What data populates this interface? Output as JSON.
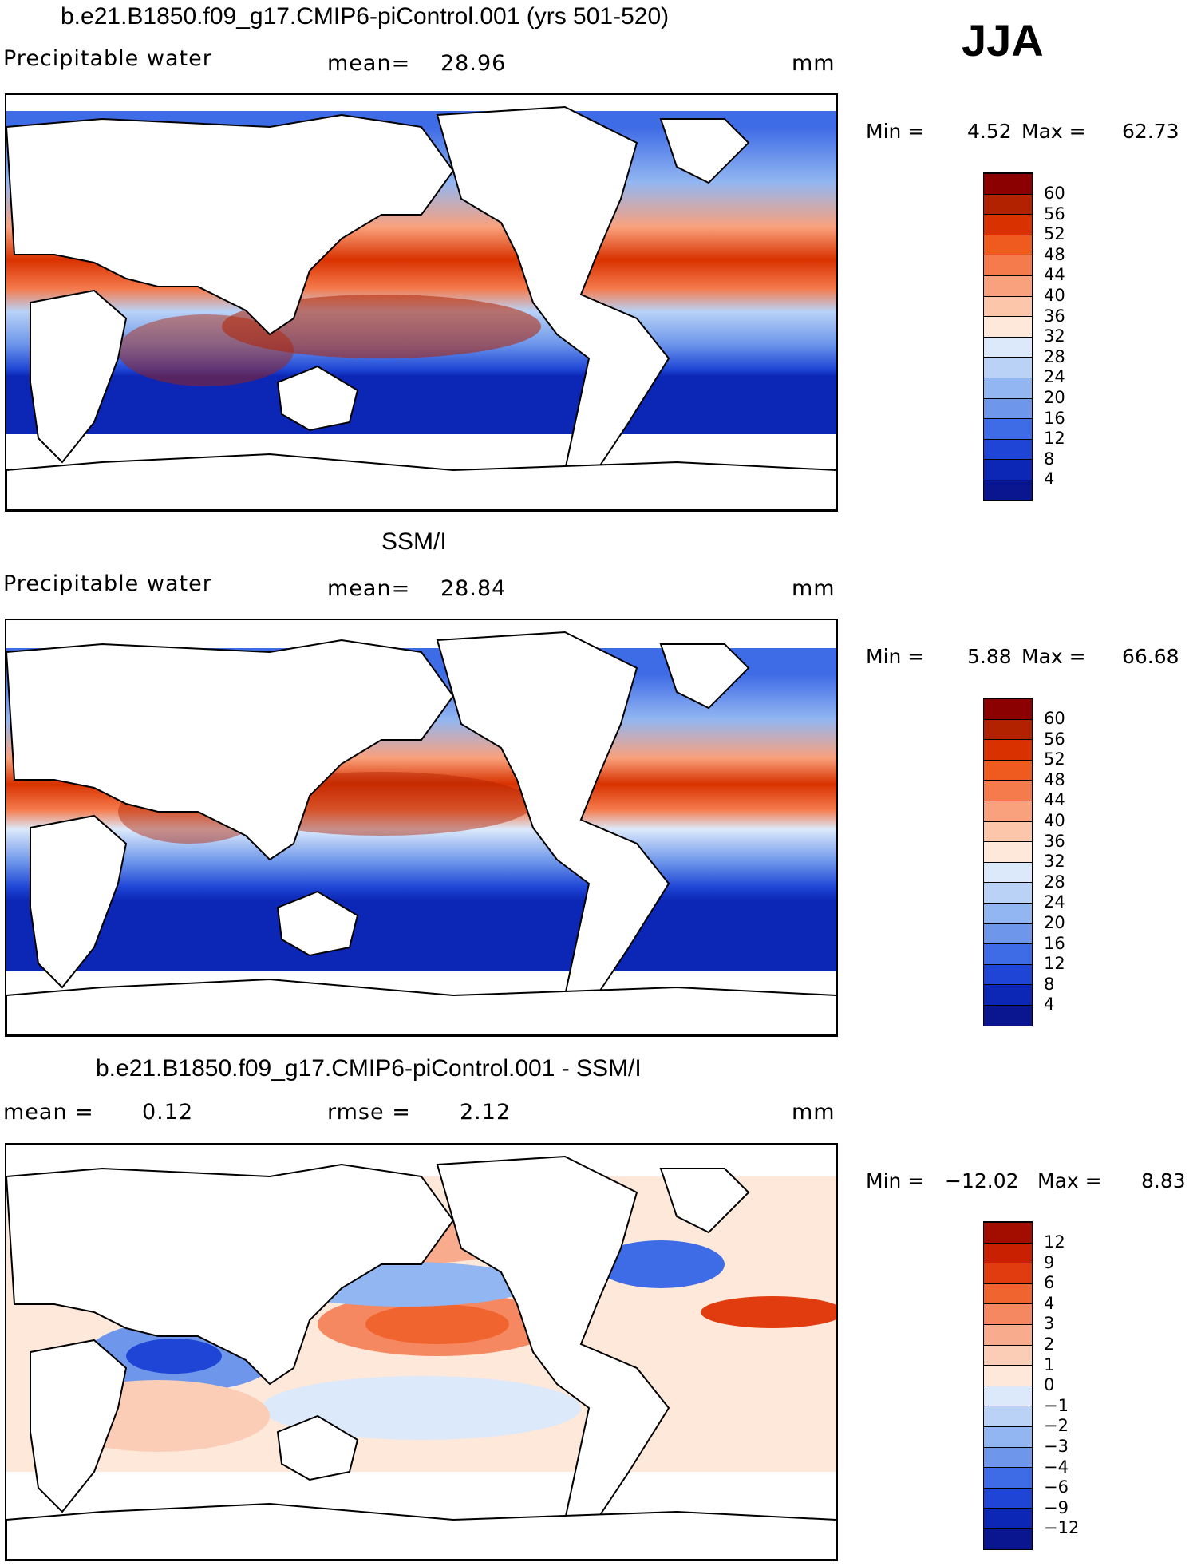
{
  "season": "JJA",
  "panels": [
    {
      "title": "b.e21.B1850.f09_g17.CMIP6-piControl.001 (yrs 501-520)",
      "left_label": "Precipitable water",
      "center_label": "mean=",
      "center_value": "28.96",
      "units": "mm",
      "min_label": "Min =",
      "min_value": "4.52",
      "max_label": "Max =",
      "max_value": "62.73"
    },
    {
      "title": "SSM/I",
      "left_label": "Precipitable water",
      "center_label": "mean=",
      "center_value": "28.84",
      "units": "mm",
      "min_label": "Min =",
      "min_value": "5.88",
      "max_label": "Max =",
      "max_value": "66.68"
    },
    {
      "title": "b.e21.B1850.f09_g17.CMIP6-piControl.001 - SSM/I",
      "left_label": "mean =",
      "left_value": "0.12",
      "center_label": "rmse =",
      "center_value": "2.12",
      "units": "mm",
      "min_label": "Min =",
      "min_value": "−12.02",
      "max_label": "Max =",
      "max_value": "8.83"
    }
  ],
  "colorbars": {
    "full_field": {
      "labels": [
        "60",
        "56",
        "52",
        "48",
        "44",
        "40",
        "36",
        "32",
        "28",
        "24",
        "20",
        "16",
        "12",
        "8",
        "4"
      ],
      "colors": [
        "#8b0000",
        "#b22200",
        "#d93200",
        "#ef5a1e",
        "#f57b4d",
        "#f9a17c",
        "#fbc6a9",
        "#fde8da",
        "#dce9fa",
        "#b9d2f6",
        "#92b6f1",
        "#6e97eb",
        "#3e6be6",
        "#1e45d5",
        "#0c27b5",
        "#0a1590"
      ]
    },
    "difference": {
      "labels": [
        "12",
        "9",
        "6",
        "4",
        "3",
        "2",
        "1",
        "0",
        "−1",
        "−2",
        "−3",
        "−4",
        "−6",
        "−9",
        "−12"
      ],
      "colors": [
        "#a30d00",
        "#c82000",
        "#e03c0f",
        "#f0652f",
        "#f58860",
        "#f8ab8d",
        "#fbcdb6",
        "#fde8da",
        "#dce9fa",
        "#b9d2f6",
        "#92b6f1",
        "#6e97eb",
        "#3e6be6",
        "#1e45d5",
        "#0c27b5",
        "#0a1590"
      ]
    }
  }
}
